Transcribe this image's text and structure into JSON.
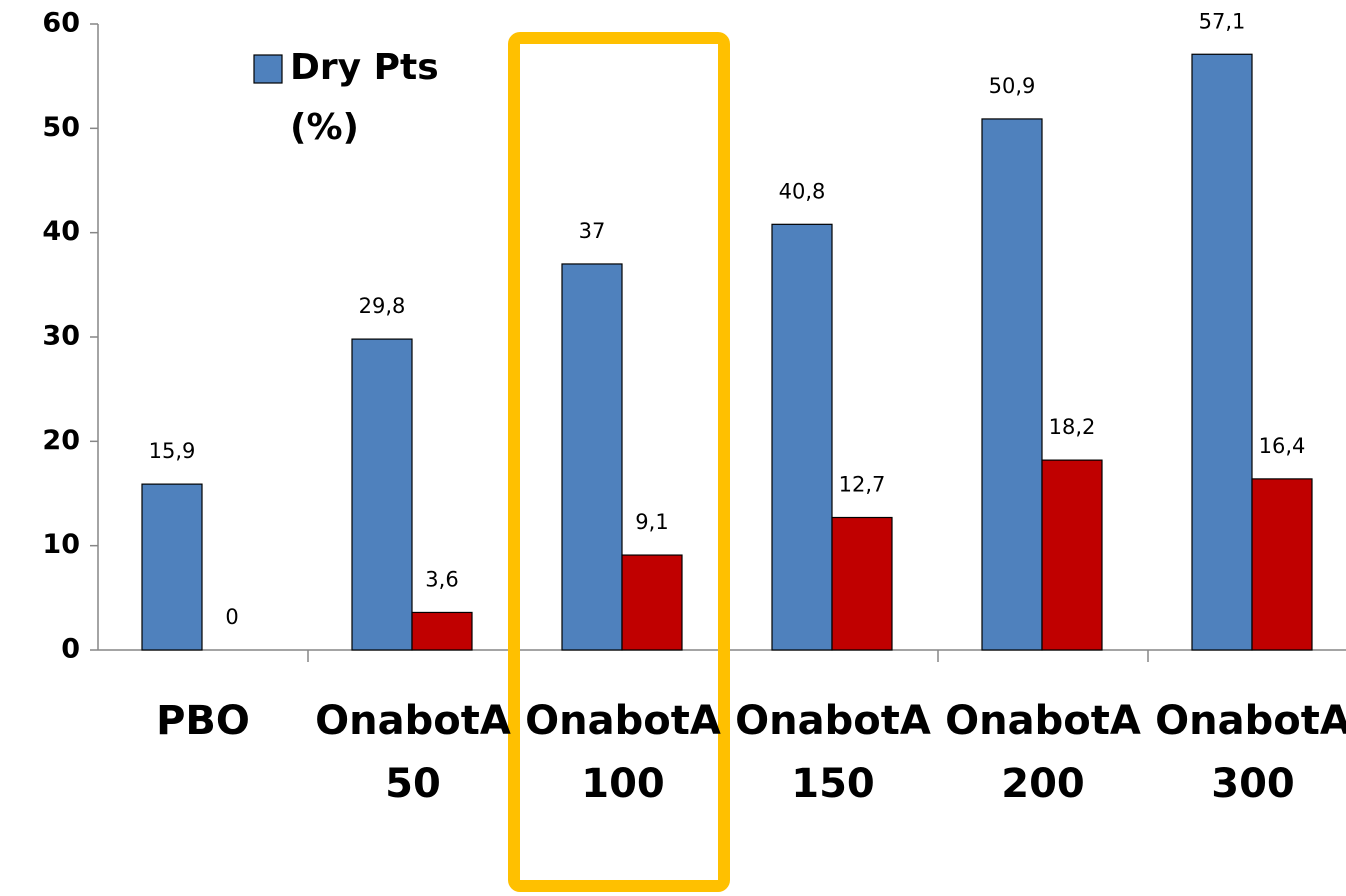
{
  "chart_data": {
    "type": "bar",
    "categories": [
      "PBO",
      "OnabotA\n50",
      "OnabotA\n100",
      "OnabotA\n150",
      "OnabotA\n200",
      "OnabotA\n300"
    ],
    "series": [
      {
        "name": "Dry Pts\n(%)",
        "color": "#4f81bd",
        "values": [
          15.9,
          29.8,
          37,
          40.8,
          50.9,
          57.1
        ],
        "value_labels": [
          "15,9",
          "29,8",
          "37",
          "40,8",
          "50,9",
          "57,1"
        ]
      },
      {
        "color": "#c00000",
        "values": [
          0,
          3.6,
          9.1,
          12.7,
          18.2,
          16.4
        ],
        "value_labels": [
          "0",
          "3,6",
          "9,1",
          "12,7",
          "18,2",
          "16,4"
        ]
      }
    ],
    "ylim": [
      0,
      60
    ],
    "yticks": [
      0,
      10,
      20,
      30,
      40,
      50,
      60
    ],
    "grid": false,
    "legend": "top-left"
  }
}
